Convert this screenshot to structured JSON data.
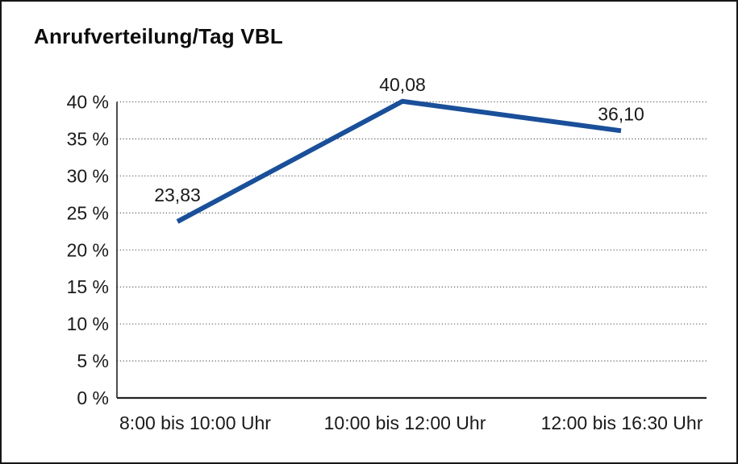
{
  "title": "Anrufverteilung/Tag VBL",
  "colors": {
    "line": "#1a4f99",
    "grid": "#4a4a4a",
    "axis": "#222222",
    "text": "#1a1a1a",
    "background": "#ffffff",
    "border": "#161616"
  },
  "chart_data": {
    "type": "line",
    "title": "Anrufverteilung/Tag VBL",
    "categories": [
      "8:00 bis 10:00 Uhr",
      "10:00 bis 12:00 Uhr",
      "12:00 bis 16:30 Uhr"
    ],
    "values": [
      23.83,
      40.08,
      36.1
    ],
    "point_labels": [
      "23,83",
      "40,08",
      "36,10"
    ],
    "xlabel": "",
    "ylabel": "",
    "ylim": [
      0,
      40
    ],
    "ytick_step": 5,
    "ytick_labels": [
      "0 %",
      "5 %",
      "10 %",
      "15 %",
      "20 %",
      "25 %",
      "30 %",
      "35 %",
      "40 %"
    ],
    "grid": "horizontal-dotted",
    "legend": "none"
  }
}
